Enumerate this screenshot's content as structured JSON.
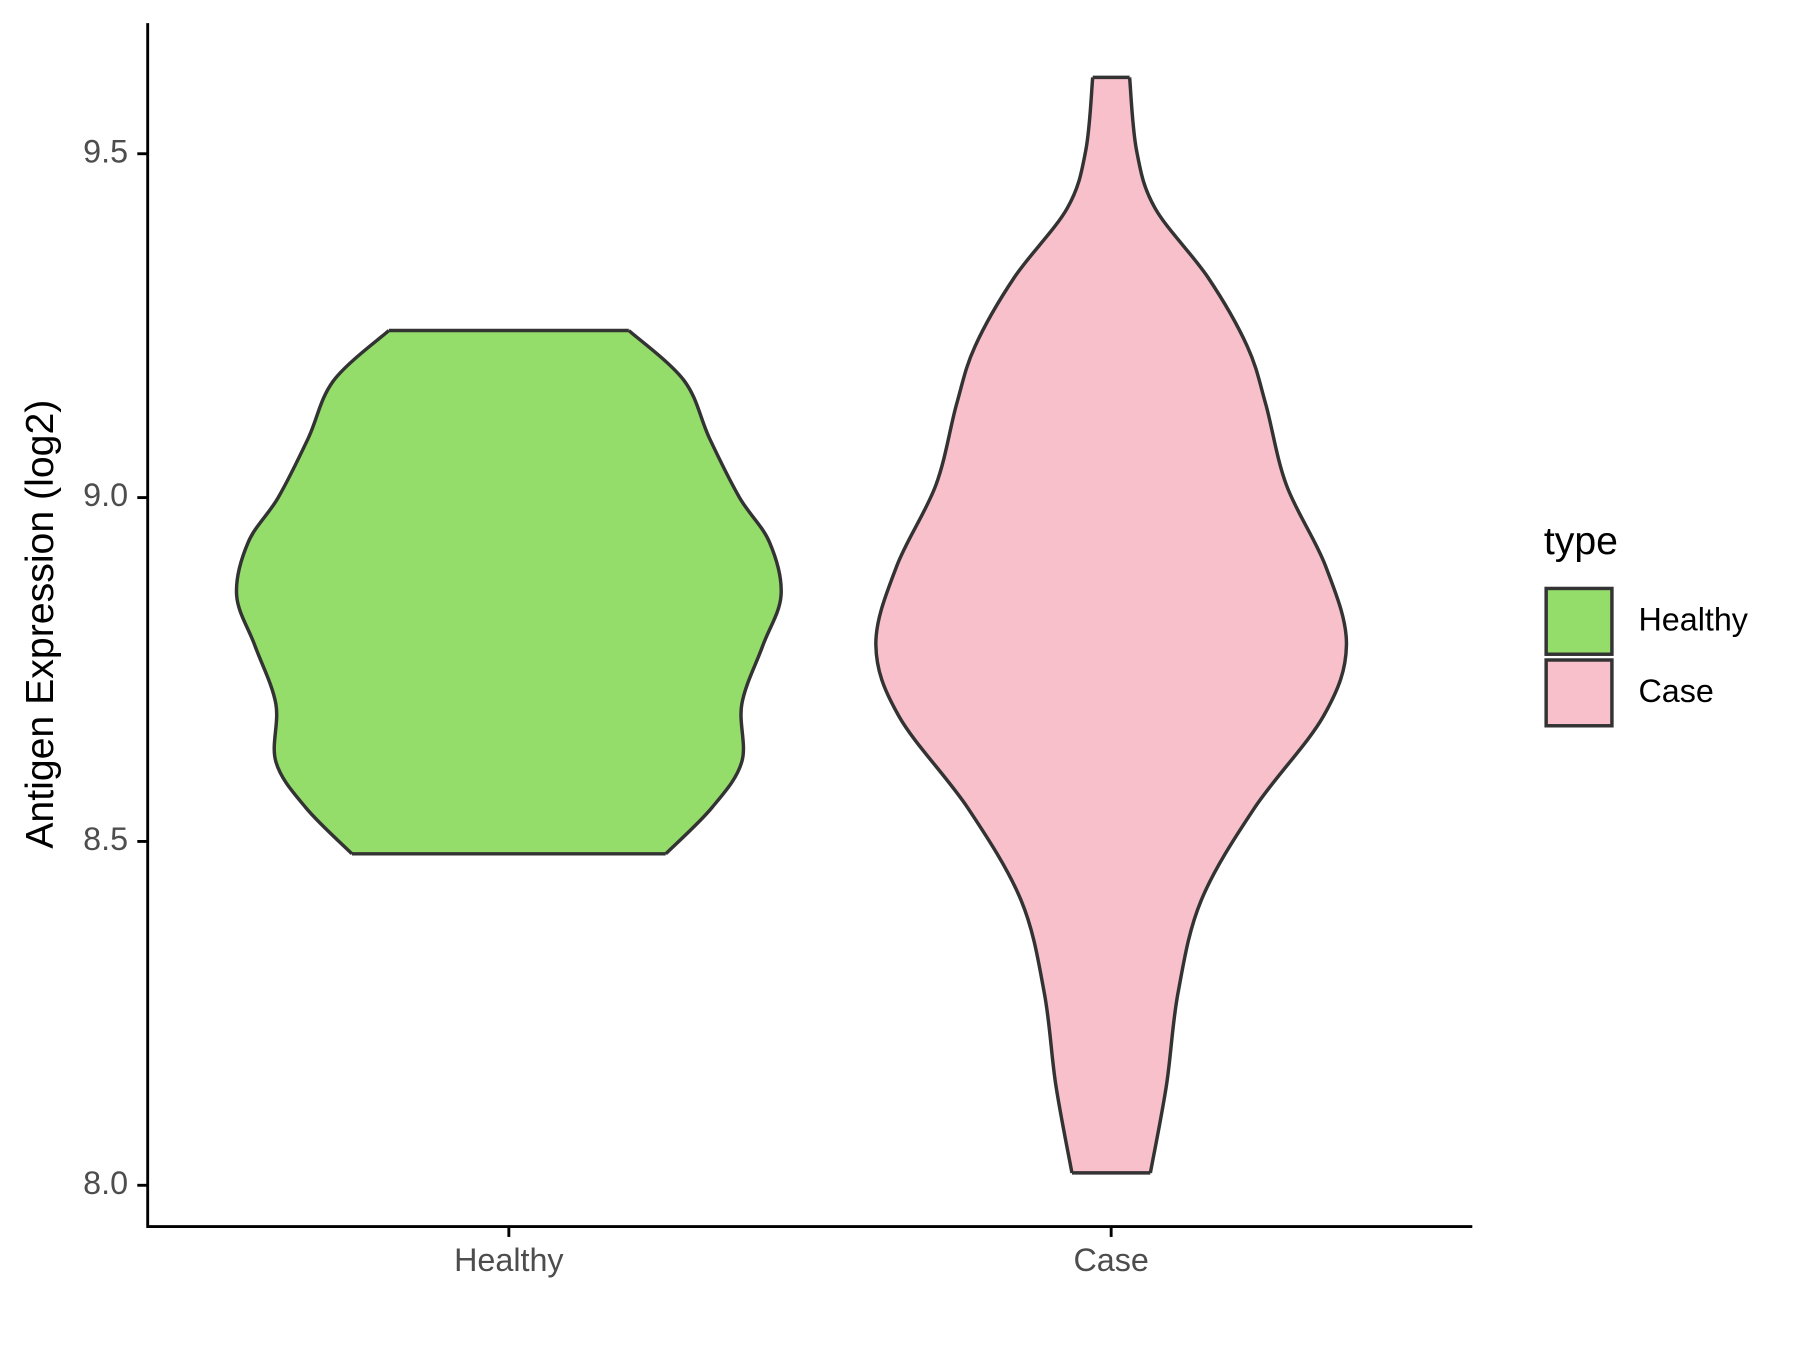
{
  "chart_data": {
    "type": "violin",
    "ylabel": "Antigen Expression (log2)",
    "categories": [
      "Healthy",
      "Case"
    ],
    "legend_title": "type",
    "ylim": [
      7.94,
      9.69
    ],
    "yticks": [
      {
        "value": 8,
        "label": "8.0"
      },
      8.5,
      {
        "value": 9,
        "label": "9.0"
      },
      9.5
    ],
    "series": [
      {
        "name": "Healthy",
        "color": "#95dd6b",
        "y": [
          9.243,
          9.17,
          9.086,
          9.0,
          8.935,
          8.858,
          8.784,
          8.7,
          8.616,
          8.549,
          8.482
        ],
        "density": [
          0.52,
          0.76,
          0.87,
          1.0,
          1.13,
          1.18,
          1.1,
          1.01,
          1.01,
          0.88,
          0.68
        ]
      },
      {
        "name": "Case",
        "color": "#f7c0cb",
        "y": [
          9.611,
          9.505,
          9.421,
          9.32,
          9.22,
          9.136,
          9.018,
          8.9,
          8.786,
          8.682,
          8.548,
          8.414,
          8.28,
          8.146,
          8.018
        ],
        "density": [
          0.08,
          0.11,
          0.19,
          0.42,
          0.59,
          0.67,
          0.76,
          0.93,
          1.02,
          0.92,
          0.62,
          0.39,
          0.29,
          0.24,
          0.17
        ]
      }
    ]
  }
}
